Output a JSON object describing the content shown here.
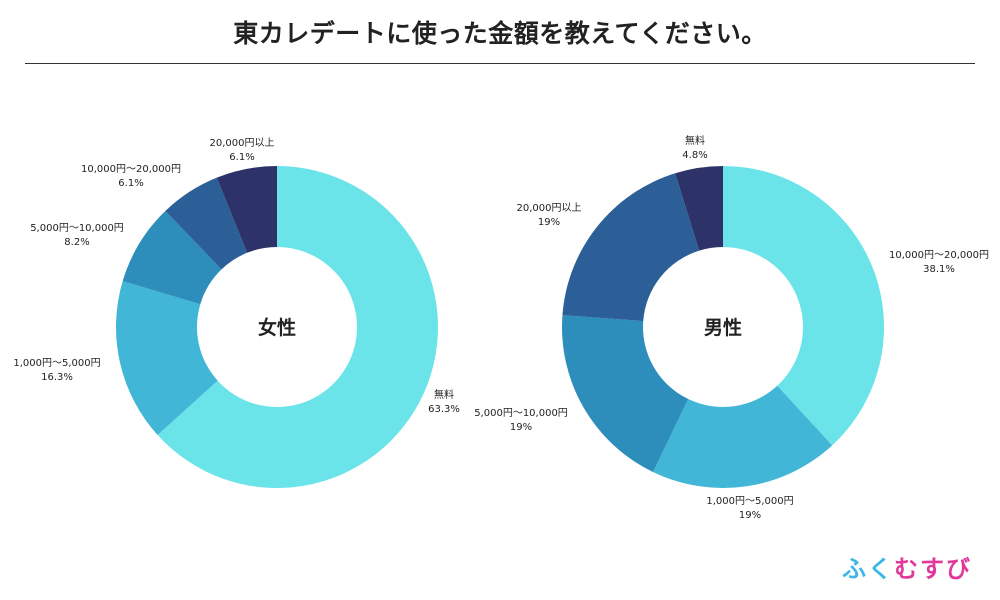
{
  "title": "東カレデートに使った金額を教えてください。",
  "logo": {
    "text": "ふくむすび",
    "colors": [
      "#3bb8e6",
      "#3bb8e6",
      "#e0399a",
      "#e0399a",
      "#e0399a"
    ]
  },
  "chart_data": [
    {
      "type": "pie",
      "donut": true,
      "title": "女性",
      "slices": [
        {
          "label": "無料",
          "value": 63.3,
          "display": "63.3%",
          "color": "#6ae4e8"
        },
        {
          "label": "1,000円〜5,000円",
          "value": 16.3,
          "display": "16.3%",
          "color": "#41b6d6"
        },
        {
          "label": "5,000円〜10,000円",
          "value": 8.2,
          "display": "8.2%",
          "color": "#2d8dbb"
        },
        {
          "label": "10,000円〜20,000円",
          "value": 6.1,
          "display": "6.1%",
          "color": "#2c5f97"
        },
        {
          "label": "20,000円以上",
          "value": 6.1,
          "display": "6.1%",
          "color": "#2d3368"
        }
      ]
    },
    {
      "type": "pie",
      "donut": true,
      "title": "男性",
      "slices": [
        {
          "label": "10,000円〜20,000円",
          "value": 38.1,
          "display": "38.1%",
          "color": "#6ae4e8"
        },
        {
          "label": "1,000円〜5,000円",
          "value": 19,
          "display": "19%",
          "color": "#41b6d6"
        },
        {
          "label": "5,000円〜10,000円",
          "value": 19,
          "display": "19%",
          "color": "#2d8dbb"
        },
        {
          "label": "20,000円以上",
          "value": 19,
          "display": "19%",
          "color": "#2c5f97"
        },
        {
          "label": "無料",
          "value": 4.8,
          "display": "4.8%",
          "color": "#2d3368"
        }
      ]
    }
  ]
}
